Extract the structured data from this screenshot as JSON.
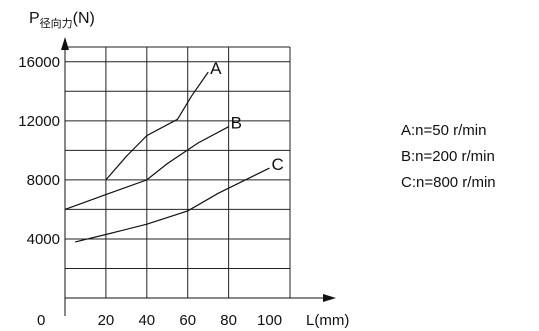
{
  "chart_data": {
    "type": "line",
    "y_label_main": "P",
    "y_label_sub": "径向力",
    "y_label_unit": "(N)",
    "x_label": "L(mm)",
    "origin_label": "0",
    "x_ticks": [
      {
        "v": 20,
        "label": "20"
      },
      {
        "v": 40,
        "label": "40"
      },
      {
        "v": 60,
        "label": "60"
      },
      {
        "v": 80,
        "label": "80"
      },
      {
        "v": 100,
        "label": "100"
      }
    ],
    "y_ticks": [
      {
        "v": 4000,
        "label": "4000"
      },
      {
        "v": 8000,
        "label": "8000"
      },
      {
        "v": 12000,
        "label": "12000"
      },
      {
        "v": 16000,
        "label": "16000"
      }
    ],
    "grid_x": [
      0,
      20,
      40,
      60,
      80,
      110
    ],
    "grid_y": [
      0,
      2000,
      4000,
      6000,
      8000,
      10000,
      12000,
      14000,
      16000,
      17000
    ],
    "xlim": [
      0,
      110
    ],
    "ylim": [
      0,
      17000
    ],
    "series": [
      {
        "name": "A",
        "points": [
          [
            20,
            8000
          ],
          [
            30,
            9600
          ],
          [
            40,
            11000
          ],
          [
            55,
            12100
          ],
          [
            62,
            13700
          ],
          [
            70,
            15300
          ]
        ]
      },
      {
        "name": "B",
        "points": [
          [
            0,
            6000
          ],
          [
            20,
            7000
          ],
          [
            40,
            8000
          ],
          [
            50,
            9100
          ],
          [
            65,
            10500
          ],
          [
            80,
            11600
          ]
        ]
      },
      {
        "name": "C",
        "points": [
          [
            5,
            3800
          ],
          [
            20,
            4300
          ],
          [
            40,
            5000
          ],
          [
            60,
            5900
          ],
          [
            75,
            7100
          ],
          [
            100,
            8800
          ]
        ]
      }
    ],
    "legend": [
      "A:n=50 r/min",
      "B:n=200 r/min",
      "C:n=800 r/min"
    ]
  }
}
